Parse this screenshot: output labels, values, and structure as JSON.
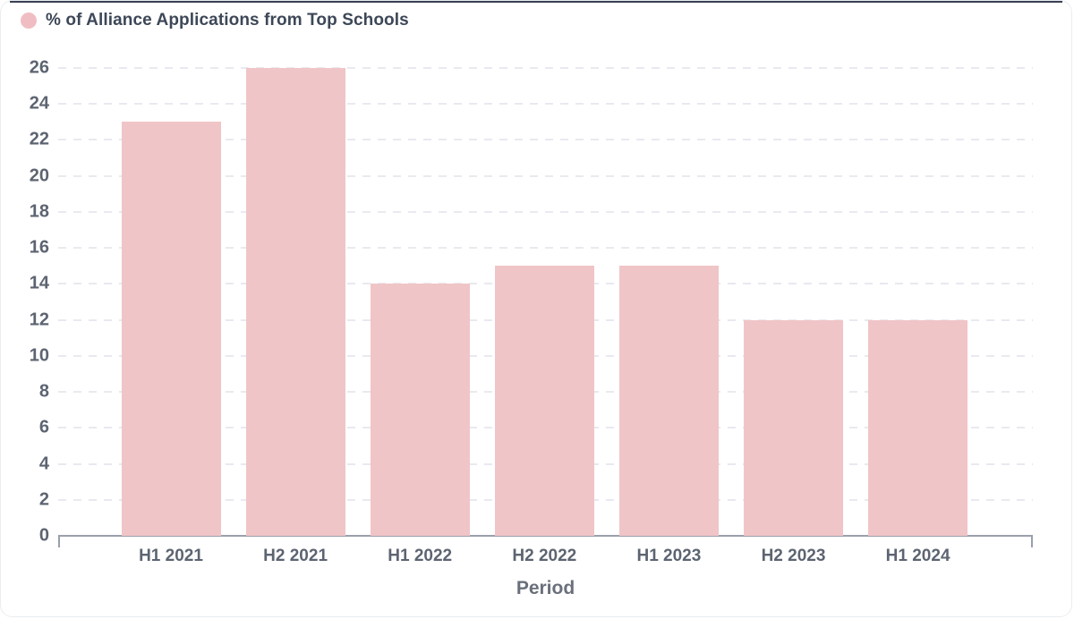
{
  "legend": {
    "label": "% of Alliance Applications from Top Schools"
  },
  "chart_data": {
    "type": "bar",
    "title": "% of Alliance Applications from Top Schools",
    "categories": [
      "H1 2021",
      "H2 2021",
      "H1 2022",
      "H2 2022",
      "H1 2023",
      "H2 2023",
      "H1 2024"
    ],
    "values": [
      23,
      26,
      14,
      15,
      15,
      12,
      12
    ],
    "series": [
      {
        "name": "% of Alliance Applications from Top Schools",
        "values": [
          23,
          26,
          14,
          15,
          15,
          12,
          12
        ]
      }
    ],
    "xlabel": "Period",
    "ylabel": "",
    "ylim": [
      0,
      26
    ],
    "ytick_step": 2,
    "yticks": [
      0,
      2,
      4,
      6,
      8,
      10,
      12,
      14,
      16,
      18,
      20,
      22,
      24,
      26
    ],
    "grid": "horizontal-dashed",
    "legend_position": "top-left",
    "colors": {
      "bar_fill": "#f0c5c7",
      "legend_dot": "#f0bec2",
      "title_text": "#3d4757",
      "tick_text": "#5d6471",
      "axis_line": "#9aa0ab",
      "gridline": "#e9e9f0"
    }
  }
}
